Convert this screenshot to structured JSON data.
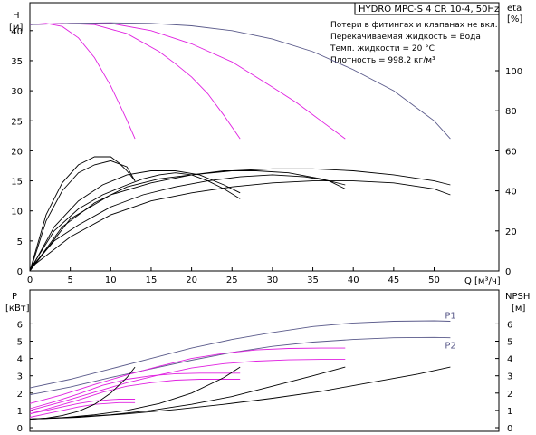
{
  "chart_data": [
    {
      "type": "line",
      "title": "HYDRO MPC-S 4 CR 10-4, 50Hz",
      "notes": [
        "Потери в фитингах и клапанах не вкл.",
        "Перекачиваемая жидкость = Вода",
        "Темп. жидкости = 20 °C",
        "Плотность = 998.2 кг/м³"
      ],
      "ylabel": "H",
      "yunit": "[м]",
      "y2label": "eta",
      "y2unit": "[%]",
      "xlabel": "Q",
      "xunit": "[м³/ч]",
      "xlim": [
        0,
        55
      ],
      "ylim": [
        0,
        42
      ],
      "y2lim": [
        0,
        126
      ],
      "xticks": [
        0,
        5,
        10,
        15,
        20,
        25,
        30,
        35,
        40,
        45,
        50
      ],
      "yticks": [
        0,
        5,
        10,
        15,
        20,
        25,
        30,
        35,
        40
      ],
      "y2ticks": [
        0,
        20,
        40,
        60,
        80,
        100
      ],
      "grid": false,
      "series": [
        {
          "x": [
            0,
            2,
            4,
            6,
            8,
            10,
            11,
            12,
            13
          ],
          "y": [
            41.0,
            41.2,
            40.7,
            38.8,
            35.5,
            30.8,
            28.0,
            25.1,
            22.0
          ]
        },
        {
          "x": [
            0,
            4,
            8,
            12,
            16,
            18,
            20,
            22,
            24,
            26
          ],
          "y": [
            41.0,
            41.2,
            41.0,
            39.5,
            36.5,
            34.5,
            32.3,
            29.5,
            25.9,
            22.0
          ]
        },
        {
          "x": [
            0,
            5,
            10,
            15,
            20,
            25,
            30,
            33,
            36,
            39
          ],
          "y": [
            41.0,
            41.2,
            41.2,
            40.0,
            37.8,
            34.8,
            30.6,
            28.0,
            25.0,
            22.0
          ]
        },
        {
          "x": [
            0,
            5,
            10,
            15,
            20,
            25,
            30,
            35,
            40,
            45,
            50,
            52
          ],
          "y": [
            41.0,
            41.2,
            41.3,
            41.2,
            40.8,
            40.0,
            38.6,
            36.5,
            33.5,
            30.0,
            25.0,
            22.0
          ]
        },
        {
          "x": [
            0.2,
            2,
            4,
            6,
            8,
            10,
            12,
            13
          ],
          "y": [
            2,
            25,
            40,
            49,
            53,
            55,
            52,
            45
          ]
        },
        {
          "x": [
            0.2,
            3,
            6,
            9,
            12,
            14,
            16,
            18,
            20,
            22,
            24,
            26
          ],
          "y": [
            2,
            20,
            31,
            38,
            43,
            46,
            48,
            49,
            48,
            45,
            41,
            36
          ]
        },
        {
          "x": [
            0.2,
            3,
            6,
            10,
            14,
            18,
            22,
            26,
            30,
            34,
            37,
            39
          ],
          "y": [
            2,
            15,
            23,
            32,
            38,
            42,
            45,
            47,
            48,
            47,
            45,
            41
          ]
        },
        {
          "x": [
            0.2,
            5,
            10,
            15,
            20,
            25,
            30,
            35,
            40,
            45,
            50,
            52
          ],
          "y": [
            2,
            17,
            28,
            35,
            39,
            42,
            44,
            45,
            45,
            44,
            41,
            38
          ]
        },
        {
          "x": [
            0,
            2,
            4,
            6,
            8,
            10,
            11,
            12,
            13
          ],
          "y": [
            0,
            28,
            44,
            53,
            57,
            57,
            54,
            50,
            45
          ]
        },
        {
          "x": [
            0,
            3,
            6,
            9,
            12,
            15,
            18,
            21,
            24,
            26
          ],
          "y": [
            0,
            22,
            35,
            43,
            48,
            50,
            50,
            48,
            43,
            39
          ]
        },
        {
          "x": [
            0,
            4,
            8,
            12,
            16,
            20,
            24,
            28,
            32,
            36,
            39
          ],
          "y": [
            0,
            22,
            34,
            42,
            46,
            48,
            50,
            50,
            49,
            46,
            43
          ]
        },
        {
          "x": [
            0,
            5,
            10,
            15,
            20,
            25,
            30,
            35,
            40,
            45,
            50,
            52
          ],
          "y": [
            0,
            26,
            38,
            44,
            48,
            50,
            51,
            51,
            50,
            48,
            45,
            43
          ]
        }
      ]
    },
    {
      "type": "line",
      "ylabel": "P",
      "yunit": "[кВт]",
      "y2label": "NPSH",
      "y2unit": "[м]",
      "xlim": [
        0,
        55
      ],
      "ylim": [
        0,
        7
      ],
      "y2lim": [
        0,
        7
      ],
      "yticks": [
        0,
        1,
        2,
        3,
        4,
        5,
        6
      ],
      "y2ticks": [
        0,
        1,
        2,
        3,
        4,
        5,
        6
      ],
      "grid": false,
      "series": [
        {
          "name": "P1",
          "x": [
            0,
            5,
            10,
            15,
            20,
            25,
            30,
            35,
            40,
            45,
            50,
            52
          ],
          "y": [
            2.3,
            2.8,
            3.4,
            4.0,
            4.6,
            5.1,
            5.5,
            5.85,
            6.05,
            6.15,
            6.18,
            6.15
          ]
        },
        {
          "name": "P2",
          "x": [
            0,
            5,
            10,
            15,
            20,
            25,
            30,
            35,
            40,
            45,
            50,
            52
          ],
          "y": [
            1.9,
            2.35,
            2.9,
            3.4,
            3.9,
            4.35,
            4.7,
            4.95,
            5.1,
            5.2,
            5.22,
            5.2
          ]
        },
        {
          "x": [
            0,
            4,
            8,
            12,
            16,
            20,
            24,
            28,
            32,
            36,
            39
          ],
          "y": [
            1.0,
            1.5,
            2.05,
            2.6,
            3.05,
            3.45,
            3.7,
            3.85,
            3.92,
            3.95,
            3.95
          ]
        },
        {
          "x": [
            0,
            4,
            8,
            12,
            16,
            20,
            24,
            28,
            32,
            36,
            39
          ],
          "y": [
            1.4,
            1.9,
            2.5,
            3.05,
            3.55,
            4.0,
            4.3,
            4.5,
            4.58,
            4.6,
            4.6
          ]
        },
        {
          "x": [
            0,
            3,
            6,
            9,
            12,
            15,
            18,
            21,
            24,
            26
          ],
          "y": [
            0.8,
            1.2,
            1.6,
            2.05,
            2.4,
            2.6,
            2.75,
            2.8,
            2.8,
            2.8
          ]
        },
        {
          "x": [
            0,
            3,
            6,
            9,
            12,
            15,
            18,
            21,
            24,
            26
          ],
          "y": [
            1.1,
            1.5,
            1.95,
            2.45,
            2.8,
            3.0,
            3.12,
            3.15,
            3.15,
            3.15
          ]
        },
        {
          "x": [
            0,
            2,
            4,
            6,
            8,
            10,
            11,
            12,
            13
          ],
          "y": [
            0.6,
            0.8,
            1.0,
            1.2,
            1.35,
            1.42,
            1.45,
            1.45,
            1.45
          ]
        },
        {
          "x": [
            0,
            2,
            4,
            6,
            8,
            10,
            11,
            12,
            13
          ],
          "y": [
            0.8,
            1.0,
            1.2,
            1.4,
            1.55,
            1.62,
            1.65,
            1.65,
            1.65
          ]
        },
        {
          "x": [
            0,
            2,
            4,
            6,
            8,
            10,
            12,
            13
          ],
          "y": [
            0.5,
            0.55,
            0.7,
            0.95,
            1.35,
            2.0,
            2.9,
            3.5
          ]
        },
        {
          "x": [
            0,
            4,
            8,
            12,
            16,
            20,
            24,
            26
          ],
          "y": [
            0.5,
            0.58,
            0.75,
            1.0,
            1.4,
            2.0,
            2.9,
            3.5
          ]
        },
        {
          "x": [
            0,
            5,
            10,
            15,
            20,
            25,
            30,
            35,
            39
          ],
          "y": [
            0.5,
            0.6,
            0.75,
            1.0,
            1.35,
            1.8,
            2.4,
            3.0,
            3.5
          ]
        },
        {
          "x": [
            0,
            6,
            12,
            18,
            24,
            30,
            36,
            42,
            48,
            52
          ],
          "y": [
            0.5,
            0.6,
            0.8,
            1.05,
            1.35,
            1.7,
            2.1,
            2.6,
            3.1,
            3.5
          ]
        }
      ]
    }
  ],
  "colors": {
    "head": "#e020e0",
    "system": "#5a5a8a",
    "black": "#000000"
  }
}
